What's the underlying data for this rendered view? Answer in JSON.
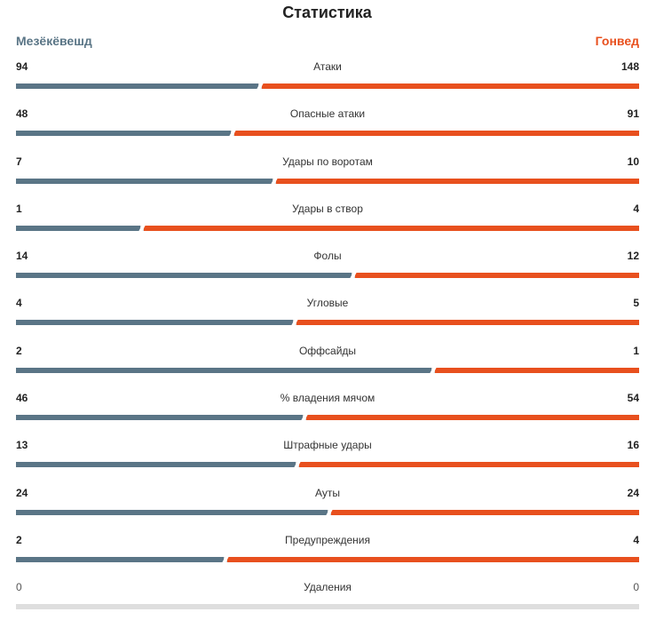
{
  "title": "Статистика",
  "teams": {
    "home": "Мезёкёвешд",
    "away": "Гонвед"
  },
  "colors": {
    "home": "#5a7586",
    "away": "#e8501e",
    "track": "#dedede"
  },
  "stats": [
    {
      "label": "Атаки",
      "home": "94",
      "away": "148"
    },
    {
      "label": "Опасные атаки",
      "home": "48",
      "away": "91"
    },
    {
      "label": "Удары по воротам",
      "home": "7",
      "away": "10"
    },
    {
      "label": "Удары в створ",
      "home": "1",
      "away": "4"
    },
    {
      "label": "Фолы",
      "home": "14",
      "away": "12"
    },
    {
      "label": "Угловые",
      "home": "4",
      "away": "5"
    },
    {
      "label": "Оффсайды",
      "home": "2",
      "away": "1"
    },
    {
      "label": "% владения мячом",
      "home": "46",
      "away": "54"
    },
    {
      "label": "Штрафные удары",
      "home": "13",
      "away": "16"
    },
    {
      "label": "Ауты",
      "home": "24",
      "away": "24"
    },
    {
      "label": "Предупреждения",
      "home": "2",
      "away": "4"
    },
    {
      "label": "Удаления",
      "home": "0",
      "away": "0"
    }
  ]
}
